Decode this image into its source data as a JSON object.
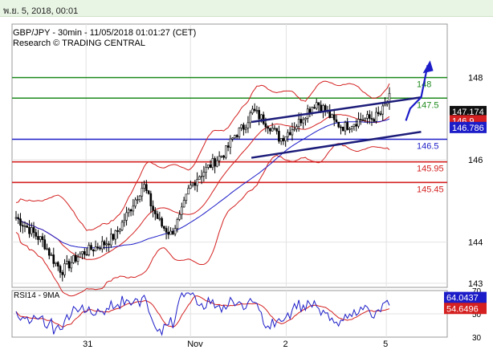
{
  "header": {
    "datetime": "พ.ย. 5, 2018, 00:01"
  },
  "chart_data": {
    "type": "candlestick",
    "title": "GBP/JPY - 30min - 11/05/2018 01:01:27 (CET)",
    "subtitle": "Research © TRADING CENTRAL",
    "ylim": [
      142.9,
      149.3
    ],
    "y_ticks": [
      143,
      144,
      146,
      148
    ],
    "x_tick_labels": [
      "31",
      "Nov",
      "2",
      "5"
    ],
    "price_path": [
      144.6,
      144.4,
      144.2,
      144.0,
      143.6,
      143.3,
      143.5,
      143.7,
      143.8,
      143.9,
      144.0,
      144.2,
      144.6,
      145.0,
      145.4,
      144.8,
      144.4,
      144.2,
      144.6,
      145.3,
      145.6,
      145.8,
      146.0,
      146.2,
      146.6,
      146.8,
      147.2,
      147.0,
      146.8,
      146.5,
      146.7,
      146.9,
      147.2,
      147.4,
      147.2,
      146.9,
      146.8,
      146.9,
      147.0,
      147.0,
      147.1,
      147.5
    ],
    "horizontal_levels": [
      {
        "value": 148,
        "label": "148",
        "color": "#1e8a1e"
      },
      {
        "value": 147.5,
        "label": "147.5",
        "color": "#1e8a1e"
      },
      {
        "value": 146.5,
        "label": "146.5",
        "color": "#1c1cc8"
      },
      {
        "value": 145.95,
        "label": "145.95",
        "color": "#d42020"
      },
      {
        "value": 145.45,
        "label": "145.45",
        "color": "#d42020"
      }
    ],
    "price_tags": [
      {
        "value": 147.174,
        "label": "147.174",
        "bg": "#111111",
        "fg": "#ffffff"
      },
      {
        "value": 146.95,
        "label": "146.9",
        "bg": "#d42020",
        "fg": "#ffffff"
      },
      {
        "value": 146.786,
        "label": "146.786",
        "bg": "#1c1cc8",
        "fg": "#ffffff"
      }
    ],
    "channel": {
      "upper": [
        [
          0.55,
          146.92
        ],
        [
          0.94,
          147.52
        ]
      ],
      "lower": [
        [
          0.55,
          146.05
        ],
        [
          0.94,
          146.68
        ]
      ]
    },
    "projection": [
      [
        0.905,
        146.95
      ],
      [
        0.915,
        147.25
      ],
      [
        0.94,
        147.52
      ],
      [
        0.955,
        148.3
      ]
    ],
    "rsi": {
      "title": "RSI14 - 9MA",
      "ylim": [
        30,
        70
      ],
      "ticks": [
        30,
        50,
        70
      ],
      "rsi_value": "64.0437",
      "ma_value": "54.6496",
      "rsi_tag_color": "#1c1cc8",
      "ma_tag_color": "#d42020"
    },
    "colors": {
      "grid": "#e2e2e2",
      "candles": "#000000",
      "bands": "#d42020",
      "ma": "#1c1cc8",
      "channel": "#1c1c7a"
    }
  }
}
